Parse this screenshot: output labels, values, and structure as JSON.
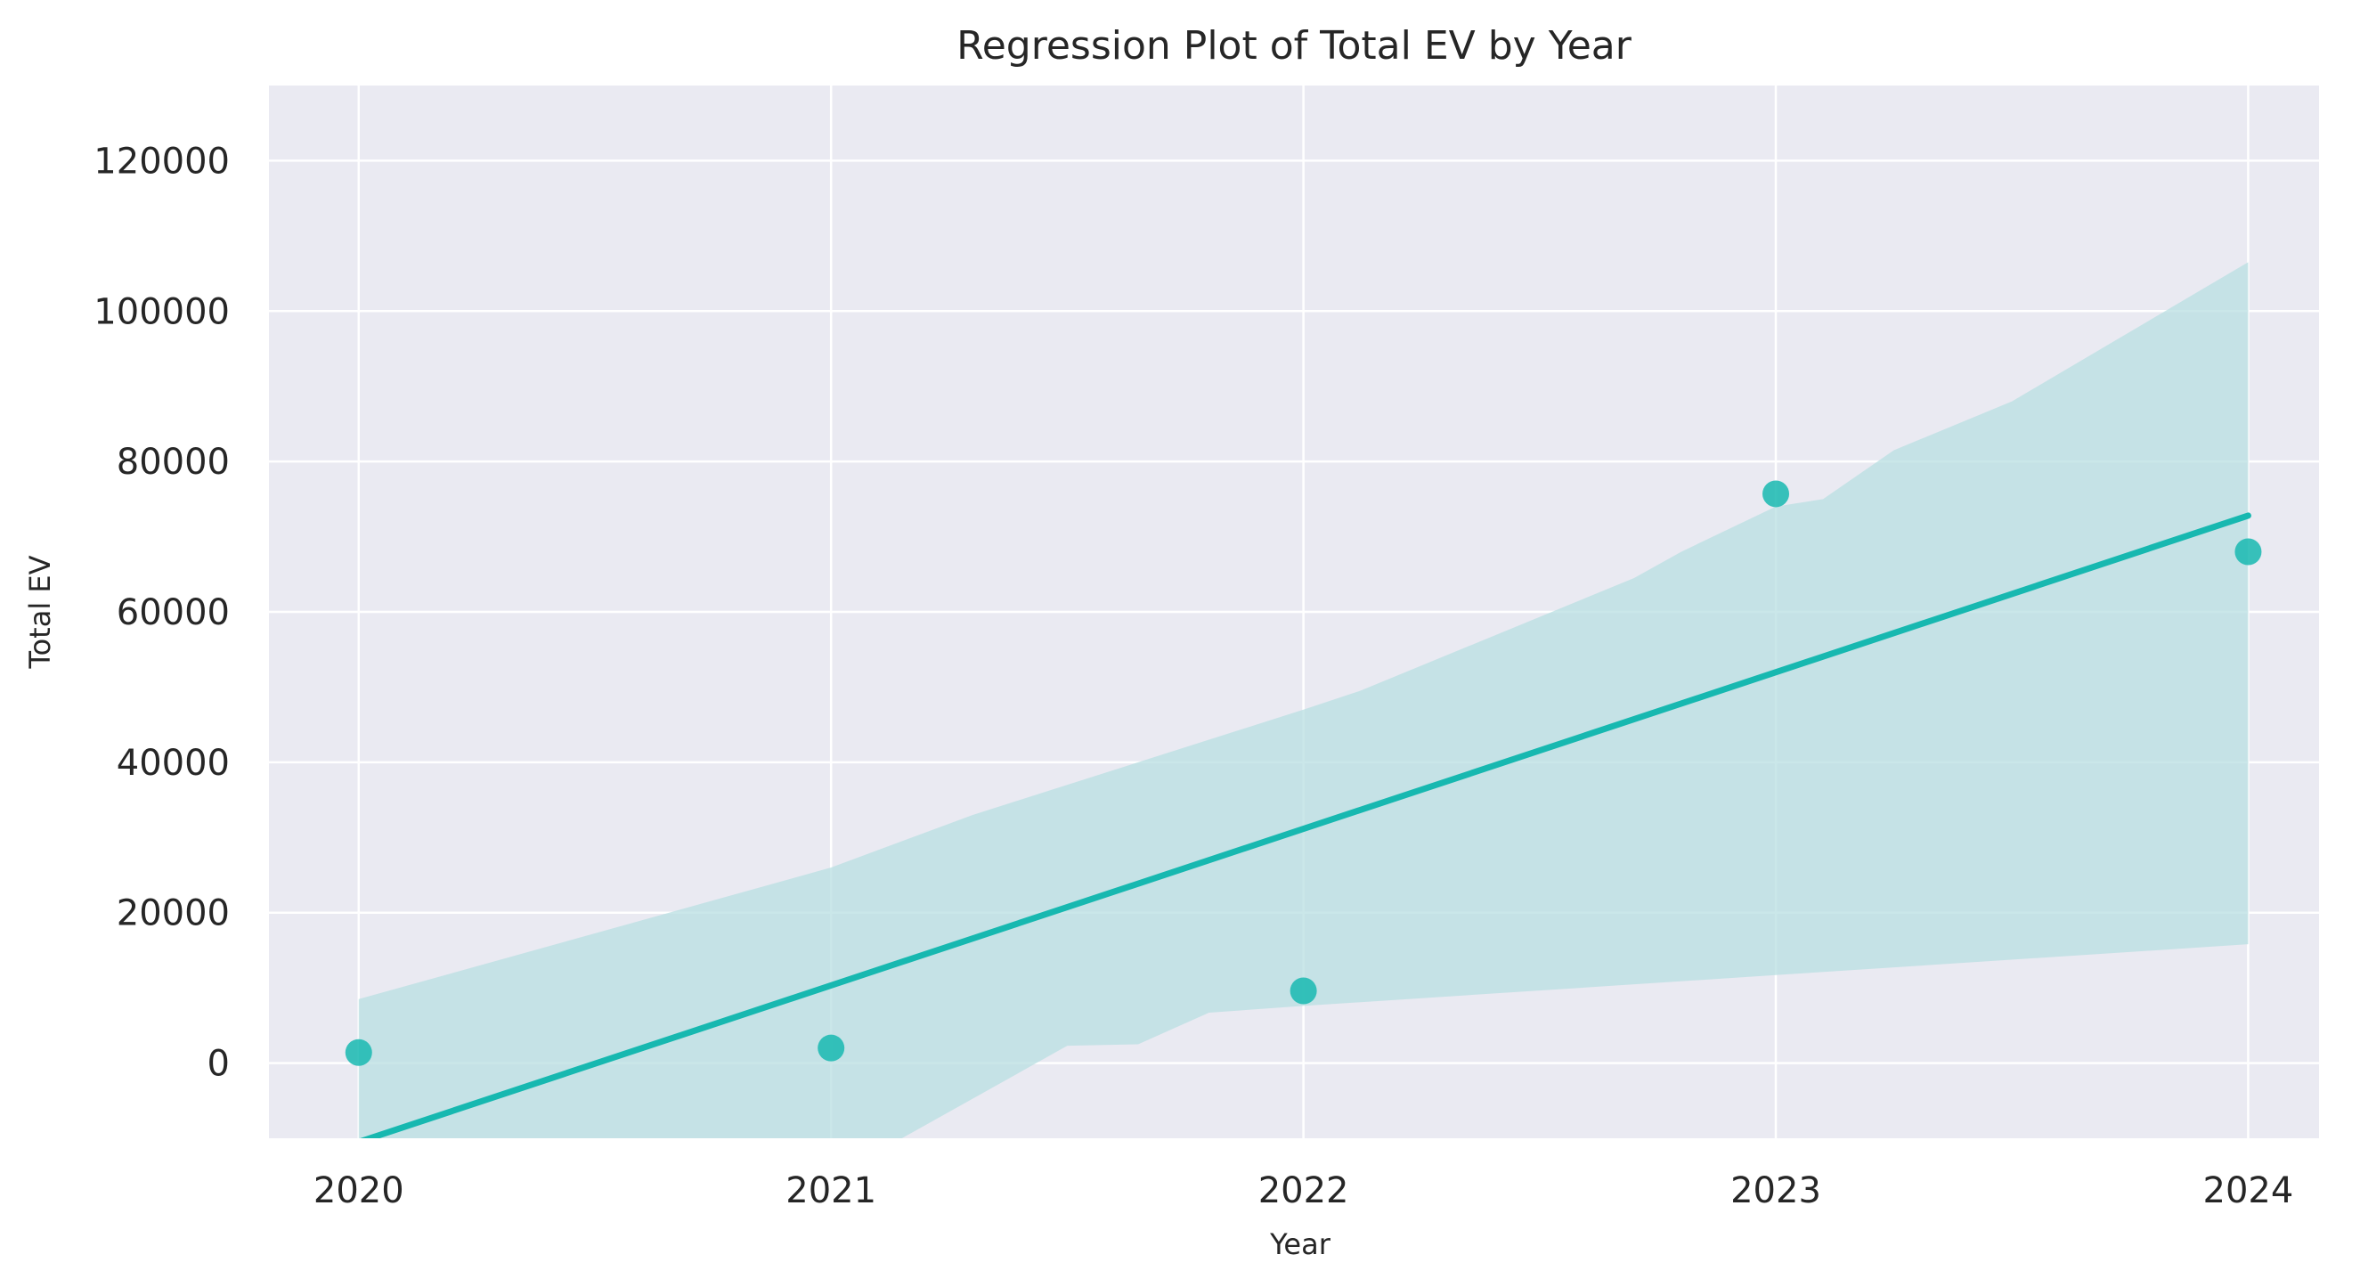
{
  "chart_data": {
    "type": "scatter",
    "title": "Regression Plot of Total EV by Year",
    "xlabel": "Year",
    "ylabel": "Total EV",
    "xlim": [
      2019.81,
      2024.15
    ],
    "ylim": [
      -10000,
      130000
    ],
    "x_ticks": [
      2020,
      2021,
      2022,
      2023,
      2024
    ],
    "y_ticks": [
      0,
      20000,
      40000,
      60000,
      80000,
      100000,
      120000
    ],
    "grid": true,
    "colors": {
      "background": "#eaeaf2",
      "grid": "#ffffff",
      "points": "#17b8b0",
      "line": "#17b8b0",
      "band": "#b8dfe2"
    },
    "points": [
      {
        "x": 2020,
        "y": 1400
      },
      {
        "x": 2021,
        "y": 2000
      },
      {
        "x": 2022,
        "y": 9600
      },
      {
        "x": 2023,
        "y": 75700
      },
      {
        "x": 2024,
        "y": 68000
      }
    ],
    "regression_line": [
      {
        "x": 2020,
        "y": -10500
      },
      {
        "x": 2024,
        "y": 72800
      }
    ],
    "confidence_band": {
      "upper": [
        {
          "x": 2020,
          "y": 8500
        },
        {
          "x": 2021,
          "y": 26000
        },
        {
          "x": 2021.3,
          "y": 33000
        },
        {
          "x": 2022,
          "y": 47000
        },
        {
          "x": 2022.12,
          "y": 49500
        },
        {
          "x": 2022.7,
          "y": 64500
        },
        {
          "x": 2022.8,
          "y": 68000
        },
        {
          "x": 2023,
          "y": 74000
        },
        {
          "x": 2023.1,
          "y": 75000
        },
        {
          "x": 2023.25,
          "y": 81500
        },
        {
          "x": 2023.5,
          "y": 88000
        },
        {
          "x": 2024,
          "y": 106500
        }
      ],
      "lower": [
        {
          "x": 2020,
          "y": -12000
        },
        {
          "x": 2021,
          "y": -12000
        },
        {
          "x": 2021.15,
          "y": -10000
        },
        {
          "x": 2021.5,
          "y": 2300
        },
        {
          "x": 2021.65,
          "y": 2500
        },
        {
          "x": 2021.8,
          "y": 6700
        },
        {
          "x": 2022,
          "y": 7600
        },
        {
          "x": 2023,
          "y": 11700
        },
        {
          "x": 2024,
          "y": 15800
        }
      ]
    }
  }
}
